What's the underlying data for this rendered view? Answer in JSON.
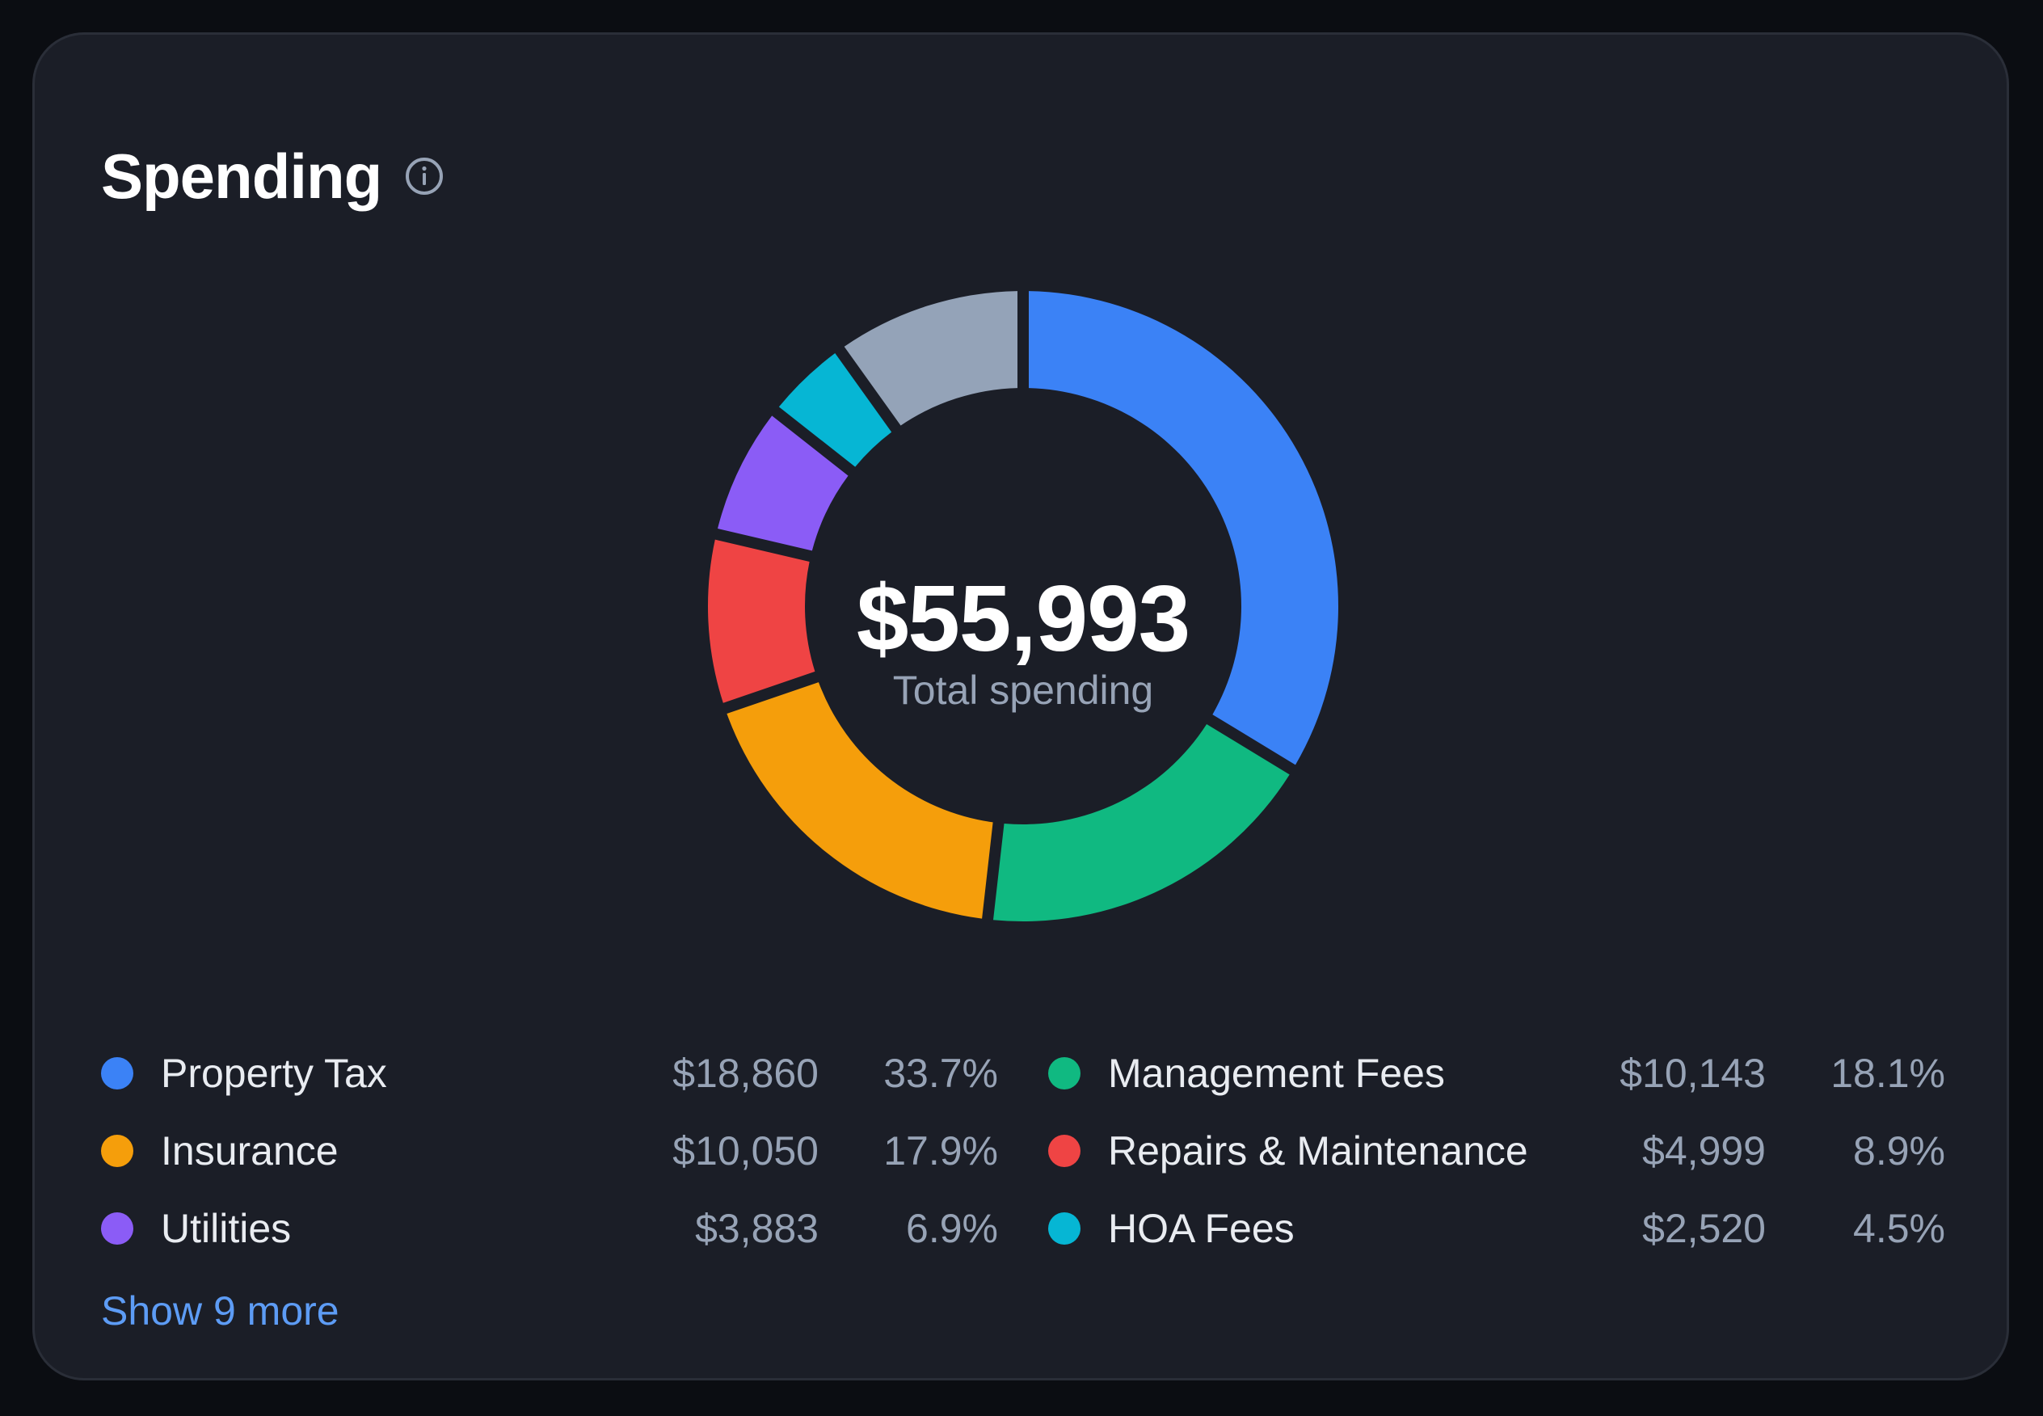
{
  "card": {
    "title": "Spending",
    "info_icon": "info-circle-icon",
    "show_more_label": "Show 9 more"
  },
  "center": {
    "value": "$55,993",
    "label": "Total spending"
  },
  "legend": [
    {
      "name": "Property Tax",
      "amount": "$18,860",
      "pct": "33.7%",
      "color": "#3b82f6"
    },
    {
      "name": "Management Fees",
      "amount": "$10,143",
      "pct": "18.1%",
      "color": "#10b981"
    },
    {
      "name": "Insurance",
      "amount": "$10,050",
      "pct": "17.9%",
      "color": "#f59e0b"
    },
    {
      "name": "Repairs & Maintenance",
      "amount": "$4,999",
      "pct": "8.9%",
      "color": "#ef4444"
    },
    {
      "name": "Utilities",
      "amount": "$3,883",
      "pct": "6.9%",
      "color": "#8b5cf6"
    },
    {
      "name": "HOA Fees",
      "amount": "$2,520",
      "pct": "4.5%",
      "color": "#06b6d4"
    }
  ],
  "chart_data": {
    "type": "pie",
    "title": "Spending",
    "categories": [
      "Property Tax",
      "Management Fees",
      "Insurance",
      "Repairs & Maintenance",
      "Utilities",
      "HOA Fees",
      ""
    ],
    "values": [
      18860,
      10143,
      10050,
      4999,
      3883,
      2520,
      5538
    ],
    "colors": [
      "#3b82f6",
      "#10b981",
      "#f59e0b",
      "#ef4444",
      "#8b5cf6",
      "#06b6d4",
      "#94a3b8"
    ],
    "total": 55993,
    "start": "top",
    "direction": "clockwise",
    "donut": true
  }
}
